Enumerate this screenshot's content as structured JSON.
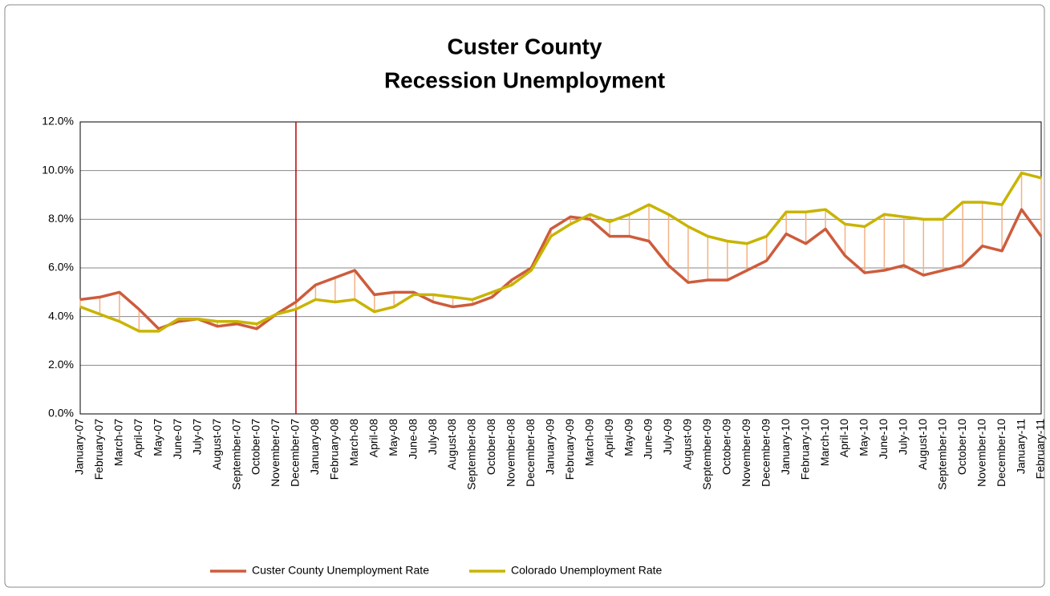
{
  "chart_data": {
    "type": "line",
    "title": [
      "Custer County",
      "Recession Unemployment"
    ],
    "categories": [
      "January-07",
      "February-07",
      "March-07",
      "April-07",
      "May-07",
      "June-07",
      "July-07",
      "August-07",
      "September-07",
      "October-07",
      "November-07",
      "December-07",
      "January-08",
      "February-08",
      "March-08",
      "April-08",
      "May-08",
      "June-08",
      "July-08",
      "August-08",
      "September-08",
      "October-08",
      "November-08",
      "December-08",
      "January-09",
      "February-09",
      "March-09",
      "April-09",
      "May-09",
      "June-09",
      "July-09",
      "August-09",
      "September-09",
      "October-09",
      "November-09",
      "December-09",
      "January-10",
      "February-10",
      "March-10",
      "April-10",
      "May-10",
      "June-10",
      "July-10",
      "August-10",
      "September-10",
      "October-10",
      "November-10",
      "December-10",
      "January-11",
      "February-11"
    ],
    "series": [
      {
        "name": "Custer County Unemployment Rate",
        "color": "#cd5c3c",
        "values": [
          4.7,
          4.8,
          5.0,
          4.3,
          3.5,
          3.8,
          3.9,
          3.6,
          3.7,
          3.5,
          4.1,
          4.6,
          5.3,
          5.6,
          5.9,
          4.9,
          5.0,
          5.0,
          4.6,
          4.4,
          4.5,
          4.8,
          5.5,
          6.0,
          7.6,
          8.1,
          8.0,
          7.3,
          7.3,
          7.1,
          6.1,
          5.4,
          5.5,
          5.5,
          5.9,
          6.3,
          7.4,
          7.0,
          7.6,
          6.5,
          5.8,
          5.9,
          6.1,
          5.7,
          5.9,
          6.1,
          6.9,
          6.7,
          8.4,
          7.3
        ]
      },
      {
        "name": "Colorado Unemployment Rate",
        "color": "#c8b400",
        "values": [
          4.4,
          4.1,
          3.8,
          3.4,
          3.4,
          3.9,
          3.9,
          3.8,
          3.8,
          3.7,
          4.1,
          4.3,
          4.7,
          4.6,
          4.7,
          4.2,
          4.4,
          4.9,
          4.9,
          4.8,
          4.7,
          5.0,
          5.3,
          5.9,
          7.3,
          7.8,
          8.2,
          7.9,
          8.2,
          8.6,
          8.2,
          7.7,
          7.3,
          7.1,
          7.0,
          7.3,
          8.3,
          8.3,
          8.4,
          7.8,
          7.7,
          8.2,
          8.1,
          8.0,
          8.0,
          8.7,
          8.7,
          8.6,
          9.9,
          9.7
        ]
      }
    ],
    "high_low_lines": {
      "color": "#f4b183"
    },
    "vertical_line": {
      "x": "December-07",
      "color": "#c00000"
    },
    "ylim": [
      0,
      12
    ],
    "yticks": [
      {
        "value": 0,
        "label": "0.0%"
      },
      {
        "value": 2,
        "label": "2.0%"
      },
      {
        "value": 4,
        "label": "4.0%"
      },
      {
        "value": 6,
        "label": "6.0%"
      },
      {
        "value": 8,
        "label": "8.0%"
      },
      {
        "value": 10,
        "label": "10.0%"
      },
      {
        "value": 12,
        "label": "12.0%"
      }
    ],
    "grid": true,
    "legend": "bottom"
  }
}
